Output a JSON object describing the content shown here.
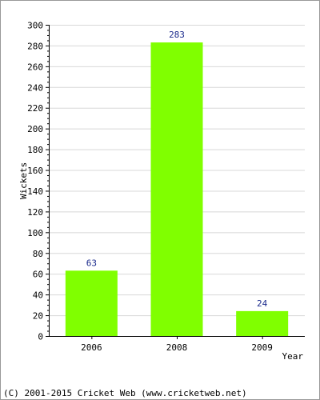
{
  "chart_data": {
    "type": "bar",
    "categories": [
      "2006",
      "2008",
      "2009"
    ],
    "values": [
      63,
      283,
      24
    ],
    "data_labels": [
      "63",
      "283",
      "24"
    ],
    "title": "",
    "xlabel": "Year",
    "ylabel": "Wickets",
    "ylim": [
      0,
      300
    ],
    "yticks": [
      0,
      20,
      40,
      60,
      80,
      100,
      120,
      140,
      160,
      180,
      200,
      220,
      240,
      260,
      280,
      300
    ],
    "grid": true,
    "bar_color": "#80ff00",
    "label_color": "#1a2a8c"
  },
  "footer": {
    "copyright": "(C) 2001-2015 Cricket Web (www.cricketweb.net)"
  }
}
